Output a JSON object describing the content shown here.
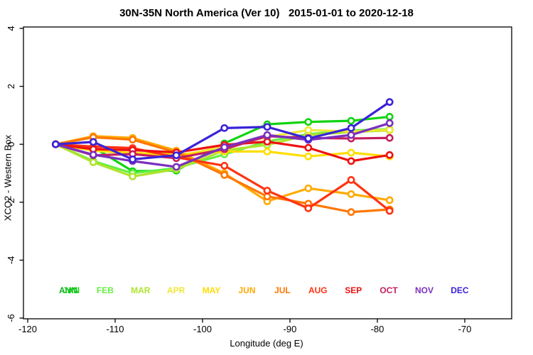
{
  "title": "30N-35N North America (Ver 10)   2015-01-01 to 2020-12-18",
  "chart_data": {
    "type": "line",
    "title": "30N-35N North America (Ver 10)   2015-01-01 to 2020-12-18",
    "xlabel": "Longitude (deg E)",
    "ylabel": "XCO2 - Western Box",
    "xlim": [
      -120.5,
      -64.6
    ],
    "ylim": [
      -6,
      4
    ],
    "x_ticks": [
      -120,
      -110,
      -100,
      -90,
      -80,
      -70
    ],
    "y_ticks": [
      -6,
      -4,
      -2,
      0,
      2,
      4
    ],
    "grid": false,
    "marker": "open-circle",
    "legend_position": "inside-bottom",
    "x": [
      -116.8,
      -112.5,
      -108.0,
      -103.0,
      -97.5,
      -92.6,
      -87.9,
      -83.0,
      -78.6
    ],
    "series": [
      {
        "name": "JAN",
        "color": "#11D411",
        "values": [
          0,
          -0.1,
          -0.93,
          -0.91,
          0.03,
          0.69,
          0.77,
          0.81,
          0.95
        ]
      },
      {
        "name": "FEB",
        "color": "#66EE44",
        "values": [
          0,
          -0.58,
          -1.0,
          -0.82,
          -0.35,
          0.1,
          0.35,
          0.48,
          0.52
        ]
      },
      {
        "name": "MAR",
        "color": "#AEE42C",
        "values": [
          0,
          -0.62,
          -1.11,
          -0.86,
          -0.21,
          -0.02,
          0.32,
          0.42,
          0.48
        ]
      },
      {
        "name": "APR",
        "color": "#EEE838",
        "values": [
          0,
          -0.22,
          -0.33,
          -0.42,
          -0.08,
          0.25,
          0.49,
          0.44,
          0.5
        ]
      },
      {
        "name": "MAY",
        "color": "#FFDD00",
        "values": [
          0,
          -0.2,
          -0.3,
          -0.35,
          -0.25,
          -0.25,
          -0.42,
          -0.29,
          -0.42
        ]
      },
      {
        "name": "JUN",
        "color": "#FFAA00",
        "values": [
          0,
          0.28,
          0.22,
          -0.22,
          -1.0,
          -1.97,
          -1.52,
          -1.72,
          -1.93
        ]
      },
      {
        "name": "JUL",
        "color": "#FF7700",
        "values": [
          0,
          0.24,
          0.16,
          -0.28,
          -1.06,
          -1.8,
          -2.05,
          -2.34,
          -2.25
        ]
      },
      {
        "name": "AUG",
        "color": "#FF3311",
        "values": [
          0,
          -0.08,
          -0.13,
          -0.45,
          -0.74,
          -1.6,
          -2.21,
          -1.23,
          -2.3
        ]
      },
      {
        "name": "SEP",
        "color": "#EE1111",
        "values": [
          0,
          -0.17,
          -0.2,
          -0.28,
          -0.02,
          0.09,
          -0.12,
          -0.58,
          -0.37
        ]
      },
      {
        "name": "OCT",
        "color": "#C41E5F",
        "values": [
          0,
          -0.38,
          -0.34,
          -0.48,
          -0.17,
          0.28,
          0.22,
          0.2,
          0.22
        ]
      },
      {
        "name": "NOV",
        "color": "#7B2FBE",
        "values": [
          0,
          -0.36,
          -0.58,
          -0.78,
          -0.1,
          0.32,
          0.15,
          0.32,
          0.73
        ]
      },
      {
        "name": "DEC",
        "color": "#3A23D8",
        "values": [
          0,
          0.08,
          -0.52,
          -0.38,
          0.56,
          0.6,
          0.2,
          0.56,
          1.46
        ]
      }
    ],
    "legend_months": [
      {
        "label": "JAN",
        "color": "#11D411"
      },
      {
        "label": "FEB",
        "color": "#66EE44"
      },
      {
        "label": "MAR",
        "color": "#AEE42C"
      },
      {
        "label": "APR",
        "color": "#EEE838"
      },
      {
        "label": "MAY",
        "color": "#FFDD00"
      },
      {
        "label": "JUN",
        "color": "#FFAA00"
      },
      {
        "label": "JUL",
        "color": "#FF7700"
      },
      {
        "label": "AUG",
        "color": "#FF3311"
      },
      {
        "label": "SEP",
        "color": "#EE1111"
      },
      {
        "label": "OCT",
        "color": "#C41E5F"
      },
      {
        "label": "NOV",
        "color": "#7B2FBE"
      },
      {
        "label": "DEC",
        "color": "#3A23D8"
      }
    ],
    "legend_ann": {
      "label": "ANN",
      "color": "#0CAE22"
    }
  }
}
